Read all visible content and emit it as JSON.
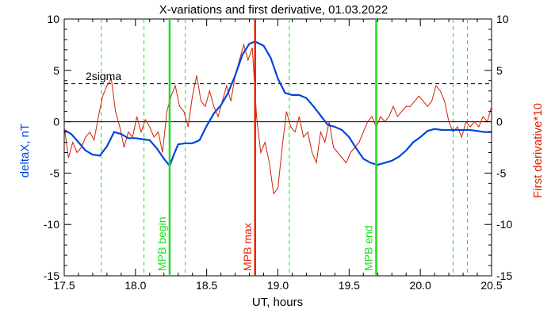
{
  "chart_data": {
    "type": "line",
    "title": "X-variations and first derivative, 01.03.2022",
    "xlabel": "UT, hours",
    "ylabel_left": "deltaX, nT",
    "ylabel_right": "First derivative*10",
    "xlim": [
      17.5,
      20.5
    ],
    "ylim_left": [
      -15,
      10
    ],
    "ylim_right": [
      -15,
      10
    ],
    "x_ticks": [
      17.5,
      18.0,
      18.5,
      19.0,
      19.5,
      20.0,
      20.5
    ],
    "x_tick_labels": [
      "17.5",
      "18.0",
      "18.5",
      "19.0",
      "19.5",
      "20.0",
      "20.5"
    ],
    "y_ticks": [
      10,
      5,
      0,
      -5,
      -10,
      -15
    ],
    "y_tick_labels": [
      "10",
      "5",
      "0",
      "-5",
      "-10",
      "-15"
    ],
    "colors": {
      "deltaX": "#0044dd",
      "derivative": "#cc2200",
      "mpb": "#22dd22",
      "max": "#ee2200",
      "right_axis_label": "#dd2200",
      "left_axis_label": "#0044dd"
    },
    "sigma_label": "2sigma",
    "sigma_level": 3.7,
    "zero_level": 0,
    "vertical_markers": [
      {
        "x": 18.24,
        "label": "MPB begin",
        "color": "#22dd22"
      },
      {
        "x": 18.84,
        "label": "MPB max",
        "color": "#ee2200"
      },
      {
        "x": 19.69,
        "label": "MPB end",
        "color": "#22dd22"
      }
    ],
    "dashed_markers": [
      17.76,
      18.06,
      18.35,
      19.08,
      20.23,
      20.33
    ],
    "series": [
      {
        "key": "deltaX",
        "x": [
          17.5,
          17.55,
          17.6,
          17.65,
          17.7,
          17.75,
          17.8,
          17.85,
          17.9,
          17.95,
          18.0,
          18.05,
          18.1,
          18.15,
          18.2,
          18.24,
          18.27,
          18.3,
          18.35,
          18.4,
          18.45,
          18.5,
          18.55,
          18.6,
          18.65,
          18.7,
          18.75,
          18.8,
          18.84,
          18.9,
          18.95,
          19.0,
          19.05,
          19.1,
          19.15,
          19.2,
          19.25,
          19.3,
          19.35,
          19.4,
          19.45,
          19.5,
          19.55,
          19.6,
          19.65,
          19.7,
          19.75,
          19.8,
          19.85,
          19.9,
          19.95,
          20.0,
          20.05,
          20.1,
          20.15,
          20.2,
          20.25,
          20.3,
          20.35,
          20.4,
          20.45,
          20.5
        ],
        "values": [
          -0.8,
          -1.2,
          -2.0,
          -2.8,
          -3.2,
          -3.3,
          -2.4,
          -1.0,
          -1.2,
          -1.6,
          -1.6,
          -1.7,
          -1.8,
          -2.6,
          -3.6,
          -4.3,
          -3.2,
          -2.2,
          -2.1,
          -2.1,
          -1.8,
          -0.4,
          0.8,
          1.6,
          2.8,
          4.5,
          6.5,
          7.6,
          7.8,
          7.4,
          6.2,
          4.2,
          2.8,
          2.6,
          2.6,
          2.3,
          1.5,
          0.6,
          -0.3,
          -0.5,
          -0.8,
          -1.5,
          -2.6,
          -3.6,
          -4.0,
          -4.2,
          -4.0,
          -3.8,
          -3.4,
          -2.8,
          -2.0,
          -1.5,
          -0.9,
          -0.7,
          -0.8,
          -0.8,
          -0.8,
          -0.8,
          -0.8,
          -0.9,
          -1.0,
          -1.0
        ]
      },
      {
        "key": "derivative",
        "x": [
          17.5,
          17.53,
          17.56,
          17.59,
          17.62,
          17.65,
          17.68,
          17.71,
          17.74,
          17.77,
          17.8,
          17.83,
          17.86,
          17.89,
          17.92,
          17.95,
          17.98,
          18.01,
          18.04,
          18.07,
          18.1,
          18.13,
          18.16,
          18.19,
          18.22,
          18.25,
          18.28,
          18.31,
          18.34,
          18.37,
          18.4,
          18.43,
          18.46,
          18.49,
          18.52,
          18.55,
          18.58,
          18.61,
          18.64,
          18.67,
          18.7,
          18.73,
          18.76,
          18.79,
          18.82,
          18.85,
          18.88,
          18.91,
          18.94,
          18.97,
          19.0,
          19.03,
          19.06,
          19.09,
          19.12,
          19.15,
          19.18,
          19.21,
          19.24,
          19.27,
          19.3,
          19.33,
          19.36,
          19.39,
          19.42,
          19.45,
          19.48,
          19.51,
          19.54,
          19.57,
          19.6,
          19.63,
          19.66,
          19.69,
          19.72,
          19.75,
          19.78,
          19.81,
          19.84,
          19.87,
          19.9,
          19.93,
          19.96,
          19.99,
          20.02,
          20.05,
          20.08,
          20.11,
          20.14,
          20.17,
          20.2,
          20.23,
          20.26,
          20.29,
          20.32,
          20.35,
          20.38,
          20.41,
          20.44,
          20.47,
          20.5
        ],
        "values": [
          -0.5,
          -3.5,
          -2.0,
          -3.0,
          -2.5,
          -1.5,
          -1.0,
          -1.8,
          0.5,
          2.5,
          3.5,
          4.2,
          1.0,
          -0.5,
          -2.5,
          -1.0,
          -1.5,
          0.5,
          -1.0,
          0.2,
          -0.5,
          -1.5,
          -1.0,
          -3.0,
          1.0,
          2.5,
          3.5,
          1.5,
          1.0,
          -0.5,
          2.5,
          4.5,
          2.0,
          1.5,
          3.0,
          1.5,
          0.5,
          2.0,
          3.5,
          2.0,
          4.5,
          6.0,
          7.5,
          6.0,
          7.2,
          0.5,
          -3.0,
          -2.0,
          -4.0,
          -7.0,
          -6.5,
          -2.5,
          1.0,
          -0.5,
          -1.0,
          0.5,
          -1.5,
          -1.0,
          -3.0,
          -4.0,
          -1.0,
          -2.0,
          0.0,
          -2.5,
          -3.0,
          -3.5,
          -4.0,
          -3.0,
          -2.5,
          -2.0,
          -1.0,
          0.0,
          0.5,
          -0.5,
          0.5,
          0.0,
          0.5,
          1.5,
          0.5,
          1.0,
          1.5,
          1.5,
          2.0,
          2.5,
          2.0,
          1.5,
          2.0,
          3.5,
          3.0,
          2.0,
          0.0,
          -1.0,
          -0.5,
          -1.5,
          0.0,
          -0.5,
          0.0,
          -0.5,
          0.5,
          0.0,
          1.5
        ]
      }
    ]
  }
}
